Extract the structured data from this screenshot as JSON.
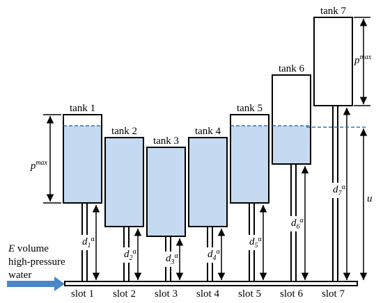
{
  "tanks": [
    {
      "label": "tank 1",
      "slot": "slot 1",
      "d_base": "d",
      "d_sub": "1",
      "d_sup": "α",
      "filled": true
    },
    {
      "label": "tank 2",
      "slot": "slot 2",
      "d_base": "d",
      "d_sub": "2",
      "d_sup": "α",
      "filled": true
    },
    {
      "label": "tank 3",
      "slot": "slot 3",
      "d_base": "d",
      "d_sub": "3",
      "d_sup": "α",
      "filled": true
    },
    {
      "label": "tank 4",
      "slot": "slot 4",
      "d_base": "d",
      "d_sub": "4",
      "d_sup": "α",
      "filled": true
    },
    {
      "label": "tank 5",
      "slot": "slot 5",
      "d_base": "d",
      "d_sub": "5",
      "d_sup": "α",
      "filled": true
    },
    {
      "label": "tank 6",
      "slot": "slot 6",
      "d_base": "d",
      "d_sub": "6",
      "d_sup": "α",
      "filled": true
    },
    {
      "label": "tank 7",
      "slot": "slot 7",
      "d_base": "d",
      "d_sub": "7",
      "d_sup": "α",
      "filled": false
    }
  ],
  "pmax_label": {
    "base": "p",
    "sup": "max"
  },
  "u_label": "u",
  "inflow": {
    "line1_var": "E",
    "line1_rest": " volume",
    "line2": "high-pressure",
    "line3": "water"
  },
  "colors": {
    "water_fill": "#c5d9f1",
    "water_level_line": "#2e74b5",
    "outline": "#000000",
    "arrow": "#4a86c8"
  }
}
